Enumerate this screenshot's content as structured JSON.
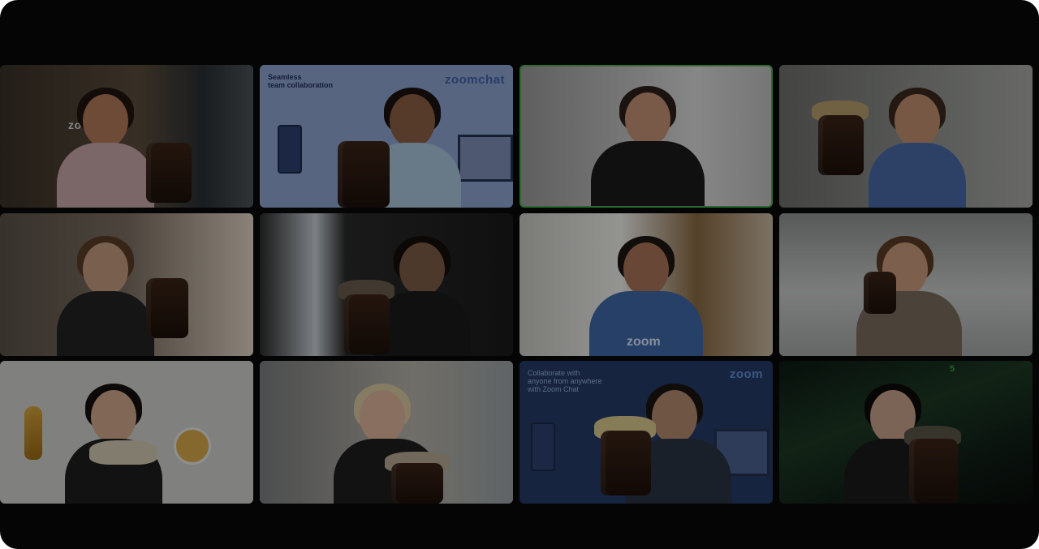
{
  "meeting": {
    "gallery": [
      {
        "name": "tile-1",
        "brand": "zoom"
      },
      {
        "name": "tile-2",
        "overlay_line1": "Seamless",
        "overlay_line2": "team collaboration",
        "brand": "zoomchat"
      },
      {
        "name": "tile-3",
        "active_speaker": true
      },
      {
        "name": "tile-4"
      },
      {
        "name": "tile-5"
      },
      {
        "name": "tile-6"
      },
      {
        "name": "tile-7",
        "shirt_text": "zoom"
      },
      {
        "name": "tile-8"
      },
      {
        "name": "tile-9"
      },
      {
        "name": "tile-10"
      },
      {
        "name": "tile-11",
        "overlay_line1": "Collaborate with",
        "overlay_line2": "anyone from anywhere",
        "overlay_line3": "with Zoom Chat",
        "brand": "zoom"
      },
      {
        "name": "tile-12",
        "corner_count": "5"
      }
    ]
  },
  "colors": {
    "window_bg": "#050505",
    "active_speaker_border": "#2f6b2f",
    "zoom_blue": "#4d7bbd"
  }
}
